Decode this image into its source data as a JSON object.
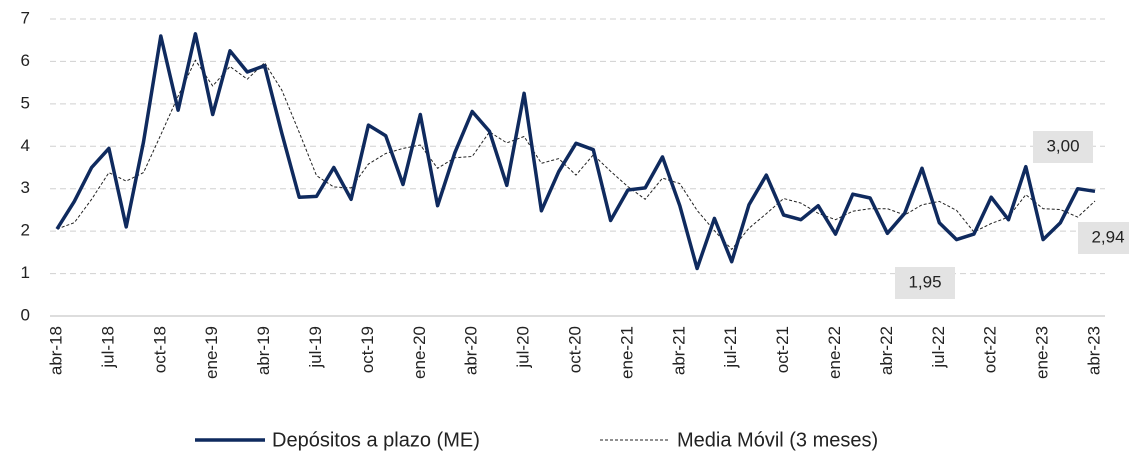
{
  "chart_data": {
    "type": "line",
    "categories": [
      "abr-18",
      null,
      null,
      "jul-18",
      null,
      null,
      "oct-18",
      null,
      null,
      "ene-19",
      null,
      null,
      "abr-19",
      null,
      null,
      "jul-19",
      null,
      null,
      "oct-19",
      null,
      null,
      "ene-20",
      null,
      null,
      "abr-20",
      null,
      null,
      "jul-20",
      null,
      null,
      "oct-20",
      null,
      null,
      "ene-21",
      null,
      null,
      "abr-21",
      null,
      null,
      "jul-21",
      null,
      null,
      "oct-21",
      null,
      null,
      "ene-22",
      null,
      null,
      "abr-22",
      null,
      null,
      "jul-22",
      null,
      null,
      "oct-22",
      null,
      null,
      "ene-23",
      null,
      null,
      "abr-23"
    ],
    "series": [
      {
        "name": "Depósitos a plazo (ME)",
        "color": "#0f2a5e",
        "style": "solid",
        "values": [
          2.05,
          2.7,
          3.5,
          3.95,
          2.1,
          4.1,
          6.6,
          4.85,
          6.65,
          4.75,
          6.25,
          5.75,
          5.9,
          4.3,
          2.8,
          2.82,
          3.5,
          2.75,
          4.5,
          4.25,
          3.1,
          4.75,
          2.6,
          3.85,
          4.82,
          4.35,
          3.08,
          5.25,
          2.48,
          3.4,
          4.07,
          3.92,
          2.25,
          2.97,
          3.02,
          3.75,
          2.6,
          1.12,
          2.3,
          1.28,
          2.62,
          3.32,
          2.38,
          2.27,
          2.6,
          1.93,
          2.87,
          2.78,
          1.95,
          2.42,
          3.48,
          2.2,
          1.8,
          1.93,
          2.8,
          2.27,
          3.52,
          1.8,
          2.2,
          3.0,
          2.94
        ]
      },
      {
        "name": "Media Móvil (3 meses)",
        "color": "#222222",
        "style": "dashed",
        "values": [
          2.05,
          2.2,
          2.75,
          3.38,
          3.18,
          3.38,
          4.27,
          5.18,
          6.03,
          5.42,
          5.88,
          5.58,
          5.97,
          5.32,
          4.33,
          3.31,
          3.04,
          3.02,
          3.58,
          3.83,
          3.95,
          4.03,
          3.48,
          3.73,
          3.76,
          4.34,
          4.08,
          4.23,
          3.6,
          3.71,
          3.32,
          3.8,
          3.41,
          3.05,
          2.75,
          3.25,
          3.12,
          2.49,
          2.01,
          1.57,
          2.07,
          2.41,
          2.77,
          2.66,
          2.42,
          2.27,
          2.47,
          2.53,
          2.53,
          2.38,
          2.62,
          2.7,
          2.49,
          1.98,
          2.18,
          2.33,
          2.86,
          2.53,
          2.51,
          2.33,
          2.71
        ]
      }
    ],
    "annotations": [
      {
        "label": "3,00",
        "value": 3.0
      },
      {
        "label": "2,94",
        "value": 2.94
      },
      {
        "label": "1,95",
        "value": 1.95
      }
    ],
    "ylim": [
      0,
      7
    ],
    "yticks": [
      0,
      1,
      2,
      3,
      4,
      5,
      6,
      7
    ],
    "grid": true,
    "legend": "bottom"
  }
}
